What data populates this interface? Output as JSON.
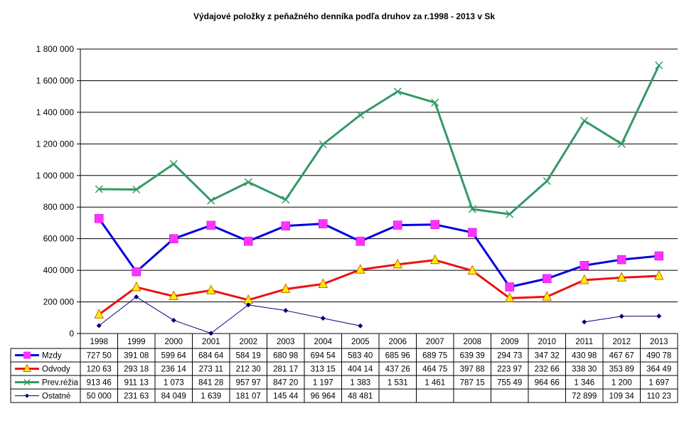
{
  "chart_data": {
    "type": "line",
    "title": "Výdajové položky z peňažného denníka podľa druhov za r.1998 - 2013 v Sk",
    "xlabel": "",
    "ylabel": "",
    "ylim": [
      0,
      1800000
    ],
    "y_ticks": [
      0,
      200000,
      400000,
      600000,
      800000,
      1000000,
      1200000,
      1400000,
      1600000,
      1800000
    ],
    "y_tick_labels": [
      "0",
      "200 000",
      "400 000",
      "600 000",
      "800 000",
      "1 000 000",
      "1 200 000",
      "1 400 000",
      "1 600 000",
      "1 800 000"
    ],
    "categories": [
      "1998",
      "1999",
      "2000",
      "2001",
      "2002",
      "2003",
      "2004",
      "2005",
      "2006",
      "2007",
      "2008",
      "2009",
      "2010",
      "2011",
      "2012",
      "2013"
    ],
    "grid": "horizontal",
    "legend": "data-table-bottom",
    "series": [
      {
        "name": "Mzdy",
        "color": "#0000dd",
        "marker": "square",
        "marker_color": "#ff33ff",
        "values": [
          727500,
          391080,
          599640,
          684640,
          584190,
          680980,
          694540,
          583400,
          685960,
          689750,
          639390,
          294730,
          347320,
          430980,
          467670,
          490780
        ],
        "table": [
          "727 50",
          "391 08",
          "599 64",
          "684 64",
          "584 19",
          "680 98",
          "694 54",
          "583 40",
          "685 96",
          "689 75",
          "639 39",
          "294 73",
          "347 32",
          "430 98",
          "467 67",
          "490 78"
        ]
      },
      {
        "name": "Odvody",
        "color": "#ee1111",
        "marker": "triangle",
        "marker_color": "#ffee00",
        "values": [
          120630,
          293180,
          236140,
          273110,
          212300,
          281170,
          313150,
          404140,
          437260,
          464750,
          397880,
          223970,
          232660,
          338300,
          353890,
          364490
        ],
        "table": [
          "120 63",
          "293 18",
          "236 14",
          "273 11",
          "212 30",
          "281 17",
          "313 15",
          "404 14",
          "437 26",
          "464 75",
          "397 88",
          "223 97",
          "232 66",
          "338 30",
          "353 89",
          "364 49"
        ]
      },
      {
        "name": "Prev.réžia",
        "color": "#339966",
        "marker": "x",
        "marker_color": "#339966",
        "values": [
          913460,
          911130,
          1073000,
          841280,
          957970,
          847200,
          1197000,
          1383000,
          1531000,
          1461000,
          787150,
          755490,
          964660,
          1346000,
          1200000,
          1697000
        ],
        "table": [
          "913 46",
          "911 13",
          "1 073",
          "841 28",
          "957 97",
          "847 20",
          "1 197",
          "1 383",
          "1 531",
          "1 461",
          "787 15",
          "755 49",
          "964 66",
          "1 346",
          "1 200",
          "1 697"
        ]
      },
      {
        "name": "Ostatné",
        "color": "#000080",
        "marker": "diamond",
        "marker_color": "#000080",
        "values": [
          50000,
          231630,
          84049,
          1639,
          181070,
          145440,
          96964,
          48481,
          null,
          null,
          null,
          null,
          null,
          72899,
          109340,
          110230
        ],
        "table": [
          "50 000",
          "231 63",
          "84 049",
          "1 639",
          "181 07",
          "145 44",
          "96 964",
          "48 481",
          "",
          "",
          "",
          "",
          "",
          "72 899",
          "109 34",
          "110 23"
        ]
      }
    ]
  }
}
